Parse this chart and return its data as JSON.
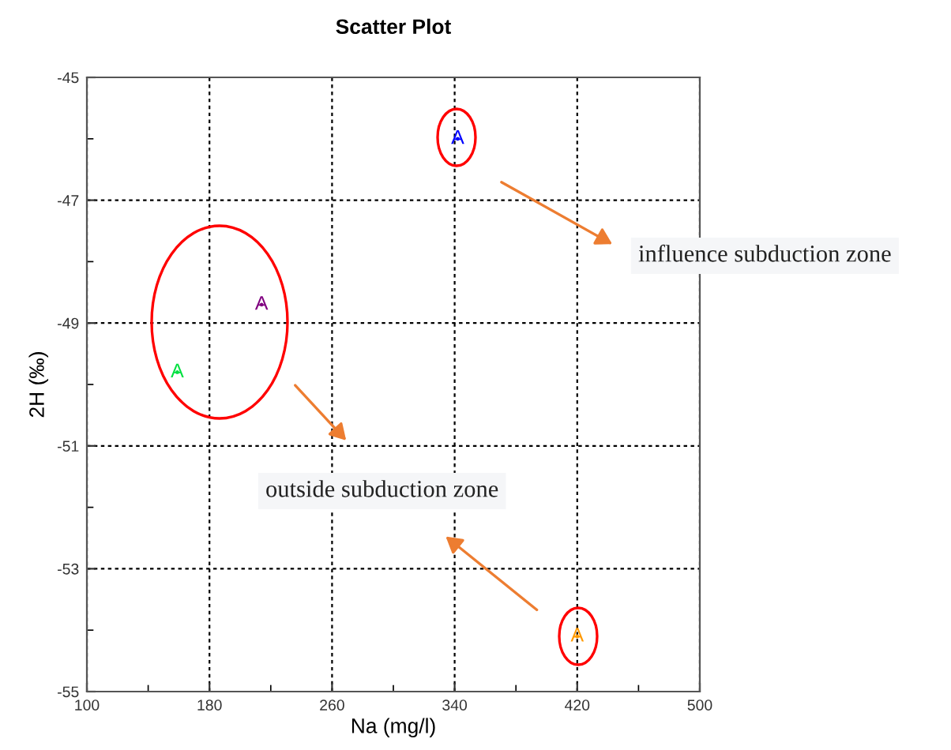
{
  "chart_data": {
    "type": "scatter",
    "title": "Scatter Plot",
    "xlabel": "Na (mg/l)",
    "ylabel": "2H (‰)",
    "series": [
      {
        "color": "#0000ff",
        "x": [
          342
        ],
        "values": [
          -46.0
        ],
        "value_labels": [
          "A"
        ]
      },
      {
        "color": "#800080",
        "x": [
          214
        ],
        "values": [
          -48.7
        ],
        "value_labels": [
          "A"
        ]
      },
      {
        "color": "#00e040",
        "x": [
          159
        ],
        "values": [
          -49.8
        ],
        "value_labels": [
          "A"
        ]
      },
      {
        "color": "#ff9900",
        "x": [
          420
        ],
        "values": [
          -54.1
        ],
        "value_labels": [
          "A"
        ]
      }
    ],
    "annotations": [
      "influence subduction zone",
      "outside subduction zone"
    ],
    "xlim": [
      100,
      500
    ],
    "xticks": [
      100,
      {
        "value": 140,
        "label": null
      },
      180,
      {
        "value": 220,
        "label": null
      },
      260,
      {
        "value": 300,
        "label": null
      },
      340,
      {
        "value": 380,
        "label": null
      },
      420,
      {
        "value": 460,
        "label": null
      },
      500
    ],
    "ylim": [
      -55,
      -45
    ],
    "yticks": [
      -55,
      {
        "value": -54,
        "label": null
      },
      -53,
      {
        "value": -52,
        "label": null
      },
      -51,
      {
        "value": -50,
        "label": null
      },
      -49,
      {
        "value": -48,
        "label": null
      },
      -47,
      {
        "value": -46,
        "label": null
      },
      -45
    ],
    "grid": true
  }
}
